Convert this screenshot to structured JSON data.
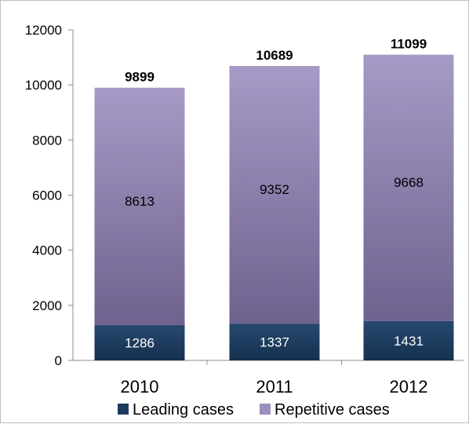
{
  "chart_data": {
    "type": "bar",
    "stacked": true,
    "categories": [
      "2010",
      "2011",
      "2012"
    ],
    "series": [
      {
        "name": "Leading cases",
        "values": [
          1286,
          1337,
          1431
        ],
        "color": "#1f3a5f"
      },
      {
        "name": "Repetitive cases",
        "values": [
          8613,
          9352,
          9668
        ],
        "color": "#9c8fbd"
      }
    ],
    "totals": [
      9899,
      10689,
      11099
    ],
    "yticks": [
      "0",
      "2000",
      "4000",
      "6000",
      "8000",
      "10000",
      "12000"
    ],
    "ylim": [
      0,
      12000
    ],
    "legend_position": "bottom",
    "grid": false
  }
}
